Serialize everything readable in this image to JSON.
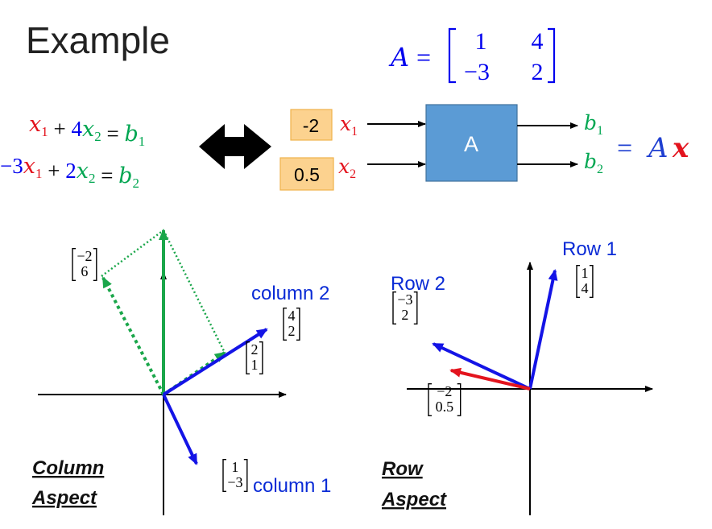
{
  "title": "Example",
  "matrix": {
    "name": "A",
    "equals": "=",
    "entries": [
      "1",
      "4",
      "−3",
      "2"
    ]
  },
  "equations": [
    {
      "terms": [
        {
          "text": "x",
          "sub": "1",
          "color": "#e3141e"
        },
        {
          "text": " + ",
          "color": "#000000"
        },
        {
          "text": "4",
          "color": "#0000ee",
          "upright": true
        },
        {
          "text": "x",
          "sub": "2",
          "color": "#00a651"
        },
        {
          "text": " = ",
          "color": "#000000"
        },
        {
          "text": "b",
          "sub": "1",
          "color": "#00a651"
        }
      ]
    },
    {
      "terms": [
        {
          "text": "−3",
          "color": "#0000ee",
          "upright": true
        },
        {
          "text": "x",
          "sub": "1",
          "color": "#e3141e"
        },
        {
          "text": " + ",
          "color": "#000000"
        },
        {
          "text": "2",
          "color": "#0000ee",
          "upright": true
        },
        {
          "text": "x",
          "sub": "2",
          "color": "#00a651"
        },
        {
          "text": " = ",
          "color": "#000000"
        },
        {
          "text": "b",
          "sub": "2",
          "color": "#00a651"
        }
      ]
    }
  ],
  "machine": {
    "box_label": "A",
    "box_fill": "#5b9bd5",
    "coef_box_fill": "#fcd28f",
    "inputs": [
      {
        "coef": "-2",
        "var": "x",
        "sub": "1",
        "color": "#e3141e"
      },
      {
        "coef": "0.5",
        "var": "x",
        "sub": "2",
        "color": "#e3141e"
      }
    ],
    "outputs": [
      {
        "var": "b",
        "sub": "1",
        "color": "#00a651"
      },
      {
        "var": "b",
        "sub": "2",
        "color": "#00a651"
      }
    ],
    "result": {
      "eq": "=",
      "A": "A",
      "x": "x",
      "a_color": "#1f3fd1",
      "x_color": "#e3141e"
    }
  },
  "column_aspect": {
    "caption": [
      "Column",
      "Aspect"
    ],
    "vectors": [
      {
        "entries": [
          "−2",
          "6"
        ]
      },
      {
        "entries": [
          "4",
          "2"
        ],
        "label": "column 2"
      },
      {
        "entries": [
          "2",
          "1"
        ]
      },
      {
        "entries": [
          "1",
          "−3"
        ],
        "label": "column 1"
      }
    ]
  },
  "row_aspect": {
    "caption": [
      "Row",
      "Aspect"
    ],
    "vectors": [
      {
        "entries": [
          "1",
          "4"
        ],
        "label": "Row 1"
      },
      {
        "entries": [
          "−3",
          "2"
        ],
        "label": "Row 2"
      },
      {
        "entries": [
          "−2",
          "0.5"
        ]
      }
    ]
  },
  "colors": {
    "blue_text": "#0000ee",
    "label_blue": "#0a2bd6",
    "arrow_blue": "#1414e6",
    "green": "#1aa64a",
    "red": "#e3141e"
  },
  "icons": {
    "double_arrow": "double-headed-arrow-icon"
  }
}
